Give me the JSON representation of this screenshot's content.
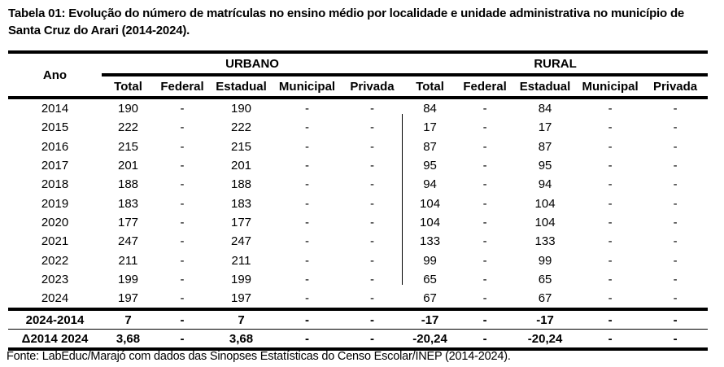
{
  "title": "Tabela 01: Evolução do número de matrículas no ensino médio por localidade e unidade administrativa no município de Santa Cruz do Arari (2014-2024).",
  "table": {
    "year_header": "Ano",
    "groups": [
      "URBANO",
      "RURAL"
    ],
    "subheaders": [
      "Total",
      "Federal",
      "Estadual",
      "Municipal",
      "Privada",
      "Total",
      "Federal",
      "Estadual",
      "Municipal",
      "Privada"
    ],
    "rows": [
      [
        "2014",
        "190",
        "-",
        "190",
        "-",
        "-",
        "84",
        "-",
        "84",
        "-",
        "-"
      ],
      [
        "2015",
        "222",
        "-",
        "222",
        "-",
        "-",
        "17",
        "-",
        "17",
        "-",
        "-"
      ],
      [
        "2016",
        "215",
        "-",
        "215",
        "-",
        "-",
        "87",
        "-",
        "87",
        "-",
        "-"
      ],
      [
        "2017",
        "201",
        "-",
        "201",
        "-",
        "-",
        "95",
        "-",
        "95",
        "-",
        "-"
      ],
      [
        "2018",
        "188",
        "-",
        "188",
        "-",
        "-",
        "94",
        "-",
        "94",
        "-",
        "-"
      ],
      [
        "2019",
        "183",
        "-",
        "183",
        "-",
        "-",
        "104",
        "-",
        "104",
        "-",
        "-"
      ],
      [
        "2020",
        "177",
        "-",
        "177",
        "-",
        "-",
        "104",
        "-",
        "104",
        "-",
        "-"
      ],
      [
        "2021",
        "247",
        "-",
        "247",
        "-",
        "-",
        "133",
        "-",
        "133",
        "-",
        "-"
      ],
      [
        "2022",
        "211",
        "-",
        "211",
        "-",
        "-",
        "99",
        "-",
        "99",
        "-",
        "-"
      ],
      [
        "2023",
        "199",
        "-",
        "199",
        "-",
        "-",
        "65",
        "-",
        "65",
        "-",
        "-"
      ],
      [
        "2024",
        "197",
        "-",
        "197",
        "-",
        "-",
        "67",
        "-",
        "67",
        "-",
        "-"
      ]
    ],
    "summary": [
      [
        "2024-2014",
        "7",
        "-",
        "7",
        "-",
        "-",
        "-17",
        "-",
        "-17",
        "-",
        "-"
      ],
      [
        "Δ2014 2024",
        "3,68",
        "-",
        "3,68",
        "-",
        "-",
        "-20,24",
        "-",
        "-20,24",
        "-",
        "-"
      ]
    ]
  },
  "source": "Fonte: LabEduc/Marajó com dados das Sinopses Estatísticas do Censo Escolar/INEP (2014-2024)."
}
